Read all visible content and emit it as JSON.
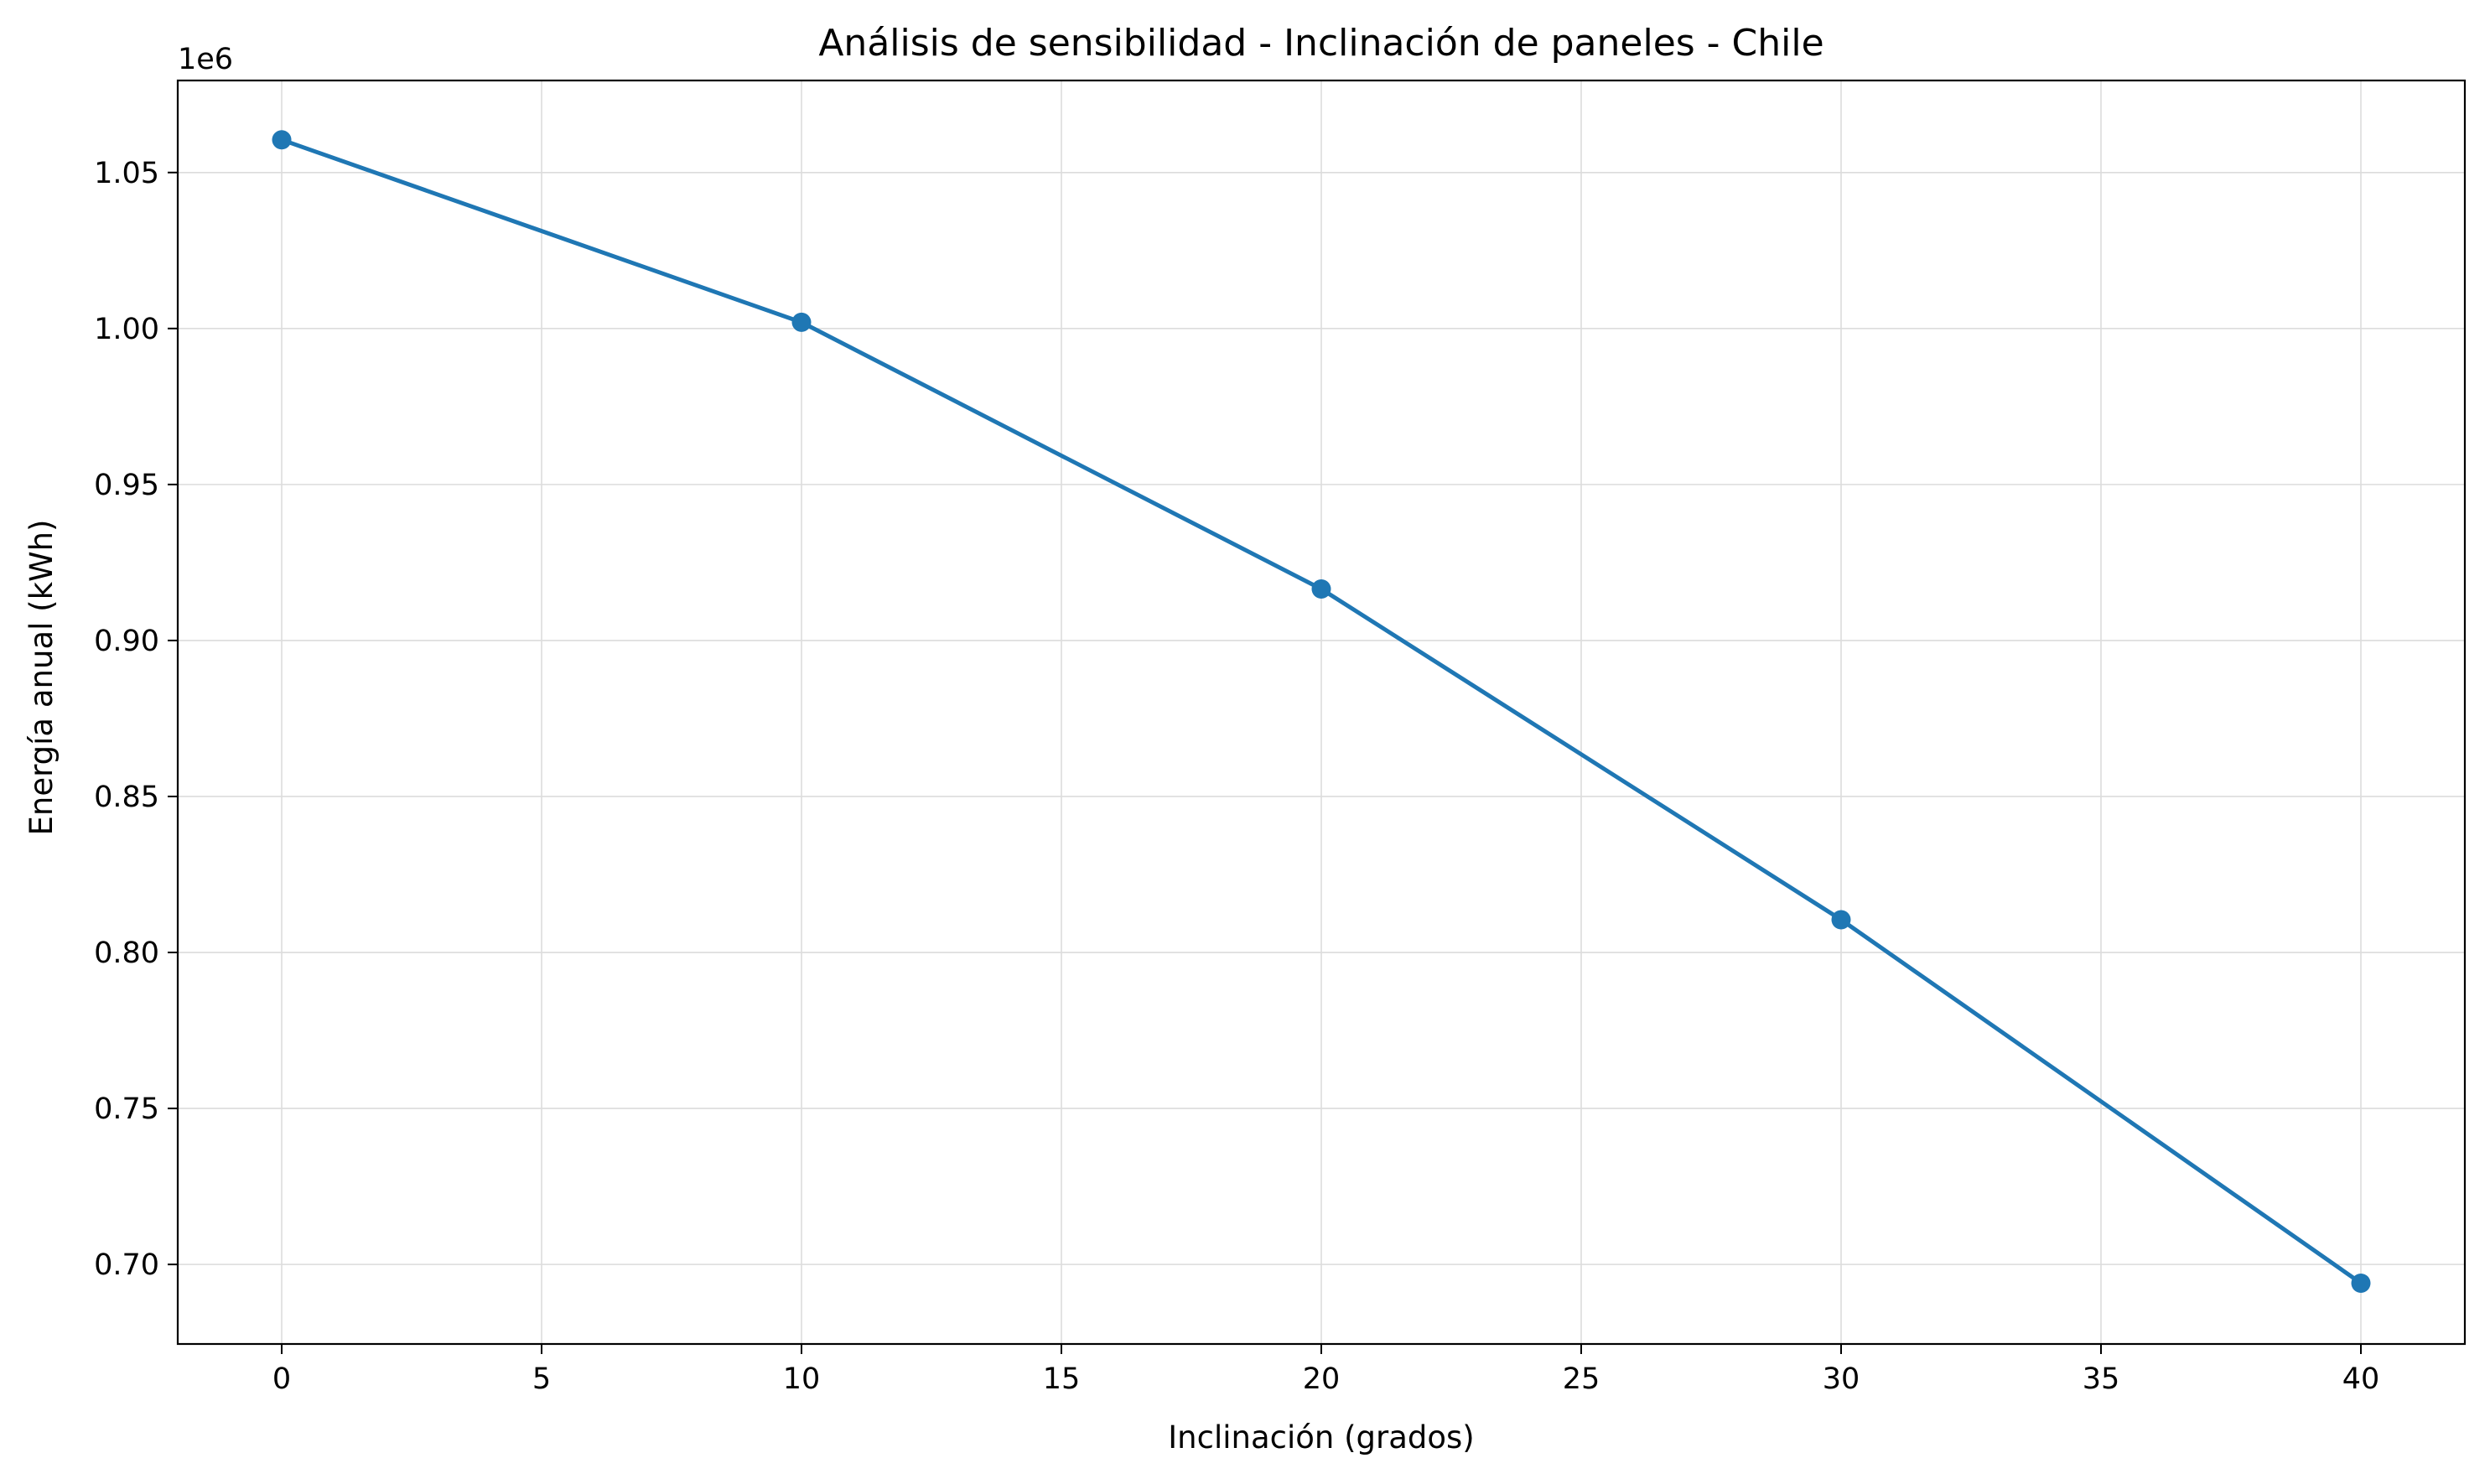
{
  "chart_data": {
    "type": "line",
    "title": "Análisis de sensibilidad - Inclinación de paneles - Chile",
    "xlabel": "Inclinación (grados)",
    "ylabel": "Energía anual (kWh)",
    "y_offset_label": "1e6",
    "x_ticks": [
      "0",
      "5",
      "10",
      "15",
      "20",
      "25",
      "30",
      "35",
      "40"
    ],
    "y_ticks": [
      "0.70",
      "0.75",
      "0.80",
      "0.85",
      "0.90",
      "0.95",
      "1.00",
      "1.05"
    ],
    "xlim": [
      -2,
      42
    ],
    "ylim": [
      0.6745,
      1.0795
    ],
    "y_scale": 1000000,
    "grid": true,
    "marker": "circle",
    "series": [
      {
        "x": [
          0,
          10,
          20,
          30,
          40
        ],
        "values": [
          1060500,
          1002000,
          916500,
          810500,
          694000
        ],
        "color": "#1f77b4"
      }
    ]
  }
}
